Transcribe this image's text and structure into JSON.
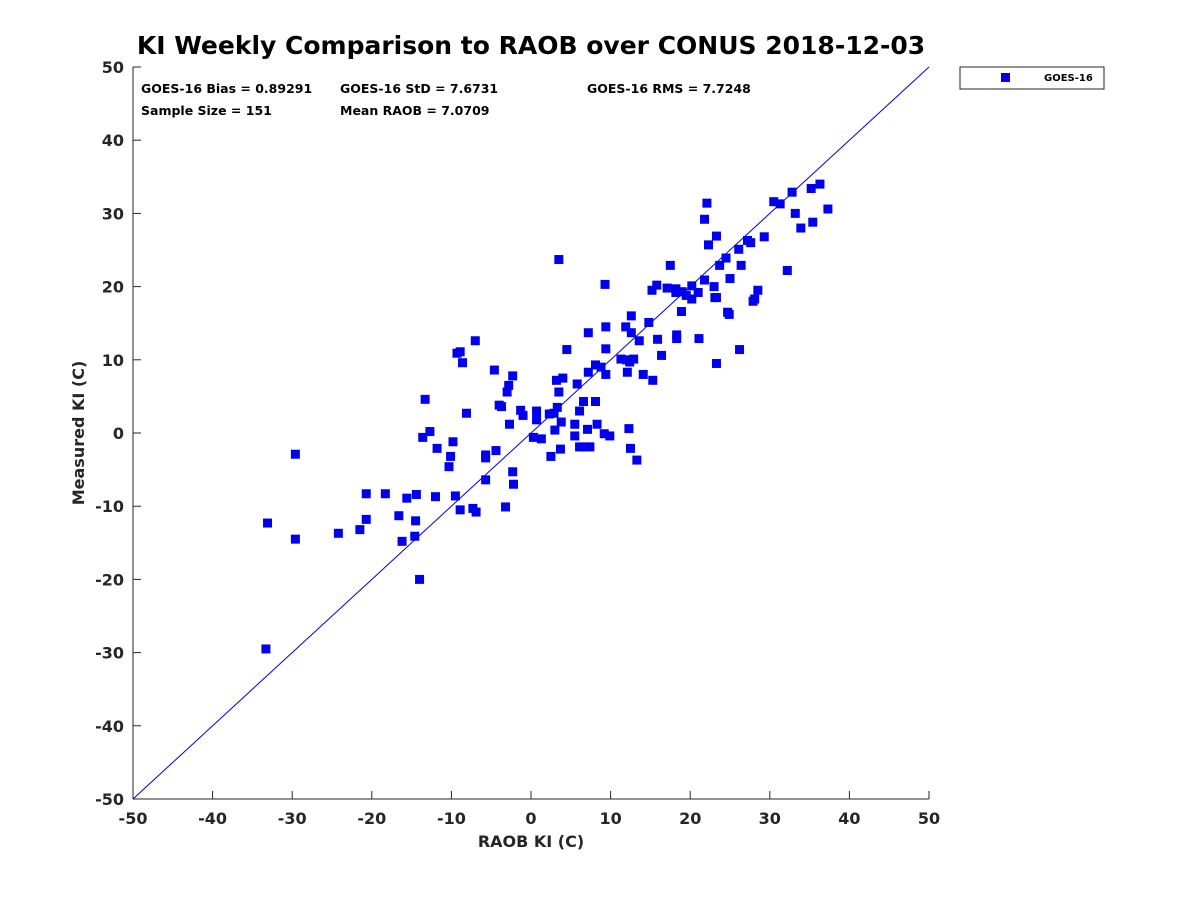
{
  "chart_data": {
    "type": "scatter",
    "title": "KI Weekly Comparison to RAOB over CONUS 2018-12-03",
    "xlabel": "RAOB KI (C)",
    "ylabel": "Measured KI (C)",
    "xlim": [
      -50,
      50
    ],
    "ylim": [
      -50,
      50
    ],
    "xticks": [
      -50,
      -40,
      -30,
      -20,
      -10,
      0,
      10,
      20,
      30,
      40,
      50
    ],
    "yticks": [
      -50,
      -40,
      -30,
      -20,
      -10,
      0,
      10,
      20,
      30,
      40,
      50
    ],
    "grid": false,
    "legend_position": "outside-top-right",
    "reference_line": "y = x",
    "colors": {
      "marker": "#0000ee",
      "line": "#0000dd",
      "axis": "#262626"
    },
    "stats": {
      "bias": "GOES-16 Bias = 0.89291",
      "std": "GOES-16 StD = 7.6731",
      "rms": "GOES-16 RMS = 7.7248",
      "sample_size": "Sample Size = 151",
      "mean_raob": "Mean RAOB = 7.0709"
    },
    "series": [
      {
        "name": "GOES-16",
        "marker": "square",
        "points": [
          [
            -33.3,
            -29.5
          ],
          [
            -33.1,
            -12.3
          ],
          [
            -29.6,
            -2.9
          ],
          [
            -29.6,
            -14.5
          ],
          [
            -24.2,
            -13.7
          ],
          [
            -21.5,
            -13.2
          ],
          [
            -20.7,
            -11.8
          ],
          [
            -20.7,
            -8.3
          ],
          [
            -18.3,
            -8.3
          ],
          [
            -16.6,
            -11.3
          ],
          [
            -16.2,
            -14.8
          ],
          [
            -15.6,
            -8.9
          ],
          [
            -14.6,
            -14.1
          ],
          [
            -14.5,
            -12.0
          ],
          [
            -14.4,
            -8.4
          ],
          [
            -14.0,
            -20.0
          ],
          [
            -13.6,
            -0.6
          ],
          [
            -13.3,
            4.6
          ],
          [
            -12.7,
            0.2
          ],
          [
            -12.0,
            -8.7
          ],
          [
            -11.8,
            -2.1
          ],
          [
            -10.3,
            -4.6
          ],
          [
            -10.1,
            -3.2
          ],
          [
            -9.8,
            -1.2
          ],
          [
            -9.5,
            -8.6
          ],
          [
            -9.3,
            10.9
          ],
          [
            -8.9,
            11.1
          ],
          [
            -8.9,
            -10.5
          ],
          [
            -8.6,
            9.6
          ],
          [
            -8.1,
            2.7
          ],
          [
            -7.3,
            -10.3
          ],
          [
            -7.0,
            12.6
          ],
          [
            -6.9,
            -10.8
          ],
          [
            -5.7,
            -3.0
          ],
          [
            -5.7,
            -3.4
          ],
          [
            -5.7,
            -6.4
          ],
          [
            -4.6,
            8.6
          ],
          [
            -4.4,
            -2.4
          ],
          [
            -4.0,
            3.8
          ],
          [
            -3.7,
            3.6
          ],
          [
            -3.2,
            -10.1
          ],
          [
            -3.0,
            5.6
          ],
          [
            -2.8,
            6.5
          ],
          [
            -2.7,
            1.2
          ],
          [
            -2.3,
            7.8
          ],
          [
            -2.3,
            -5.3
          ],
          [
            -2.2,
            -7.0
          ],
          [
            -1.3,
            3.1
          ],
          [
            -1.0,
            2.4
          ],
          [
            0.3,
            -0.6
          ],
          [
            0.7,
            3.0
          ],
          [
            0.7,
            1.8
          ],
          [
            1.3,
            -0.8
          ],
          [
            2.3,
            2.6
          ],
          [
            2.5,
            -3.2
          ],
          [
            2.9,
            2.7
          ],
          [
            3.0,
            0.4
          ],
          [
            3.2,
            7.2
          ],
          [
            3.3,
            3.5
          ],
          [
            3.5,
            5.6
          ],
          [
            3.5,
            23.7
          ],
          [
            3.7,
            -2.2
          ],
          [
            3.8,
            1.5
          ],
          [
            4.0,
            7.5
          ],
          [
            4.5,
            11.4
          ],
          [
            5.5,
            1.2
          ],
          [
            5.5,
            -0.4
          ],
          [
            5.8,
            6.7
          ],
          [
            6.1,
            3.0
          ],
          [
            6.1,
            -1.9
          ],
          [
            6.6,
            4.3
          ],
          [
            6.8,
            -1.9
          ],
          [
            7.1,
            0.5
          ],
          [
            7.2,
            13.7
          ],
          [
            7.2,
            8.3
          ],
          [
            7.4,
            -1.9
          ],
          [
            8.1,
            9.3
          ],
          [
            8.1,
            4.3
          ],
          [
            8.3,
            1.2
          ],
          [
            8.8,
            9.0
          ],
          [
            9.2,
            -0.1
          ],
          [
            9.3,
            20.3
          ],
          [
            9.4,
            14.5
          ],
          [
            9.4,
            11.5
          ],
          [
            9.4,
            8.0
          ],
          [
            9.9,
            -0.4
          ],
          [
            11.3,
            10.1
          ],
          [
            11.9,
            14.5
          ],
          [
            12.0,
            10.0
          ],
          [
            12.1,
            8.3
          ],
          [
            12.3,
            0.6
          ],
          [
            12.4,
            9.7
          ],
          [
            12.5,
            -2.1
          ],
          [
            12.6,
            16.0
          ],
          [
            12.6,
            13.7
          ],
          [
            12.9,
            10.1
          ],
          [
            13.3,
            -3.7
          ],
          [
            13.6,
            12.6
          ],
          [
            14.1,
            8.0
          ],
          [
            14.8,
            15.1
          ],
          [
            15.2,
            19.5
          ],
          [
            15.3,
            7.2
          ],
          [
            15.8,
            20.2
          ],
          [
            15.9,
            12.8
          ],
          [
            16.4,
            10.6
          ],
          [
            17.1,
            19.8
          ],
          [
            17.5,
            22.9
          ],
          [
            18.2,
            19.2
          ],
          [
            18.2,
            19.7
          ],
          [
            18.3,
            12.9
          ],
          [
            18.3,
            13.4
          ],
          [
            18.9,
            16.6
          ],
          [
            19.0,
            19.3
          ],
          [
            19.5,
            18.8
          ],
          [
            20.2,
            20.1
          ],
          [
            20.2,
            18.3
          ],
          [
            21.0,
            19.2
          ],
          [
            21.1,
            12.9
          ],
          [
            21.8,
            29.2
          ],
          [
            21.8,
            20.9
          ],
          [
            22.1,
            31.4
          ],
          [
            22.3,
            25.7
          ],
          [
            23.0,
            20.0
          ],
          [
            23.1,
            18.5
          ],
          [
            23.3,
            26.9
          ],
          [
            23.3,
            18.5
          ],
          [
            23.3,
            9.5
          ],
          [
            23.7,
            22.9
          ],
          [
            24.5,
            23.9
          ],
          [
            24.7,
            16.5
          ],
          [
            24.9,
            16.2
          ],
          [
            25.0,
            21.1
          ],
          [
            26.1,
            25.1
          ],
          [
            26.2,
            11.4
          ],
          [
            26.4,
            22.9
          ],
          [
            27.2,
            26.3
          ],
          [
            27.6,
            26.0
          ],
          [
            27.9,
            18.0
          ],
          [
            28.1,
            18.3
          ],
          [
            28.5,
            19.5
          ],
          [
            29.3,
            26.8
          ],
          [
            30.5,
            31.6
          ],
          [
            31.3,
            31.3
          ],
          [
            32.2,
            22.2
          ],
          [
            32.8,
            32.9
          ],
          [
            33.2,
            30.0
          ],
          [
            33.9,
            28.0
          ],
          [
            35.2,
            33.4
          ],
          [
            35.4,
            28.8
          ],
          [
            36.3,
            34.0
          ],
          [
            37.3,
            30.6
          ]
        ]
      }
    ]
  }
}
